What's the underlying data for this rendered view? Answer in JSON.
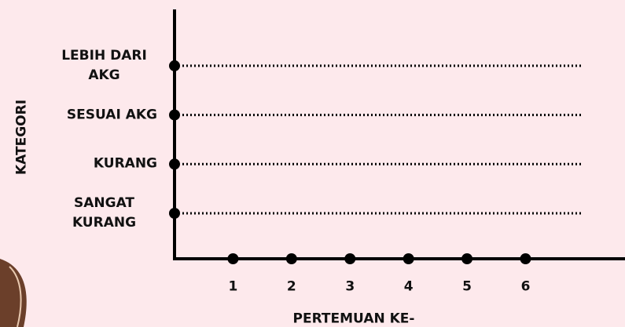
{
  "chart_data": {
    "type": "category-grid",
    "x_label": "PERTEMUAN KE-",
    "y_label": "KATEGORI",
    "xlim": [
      0,
      7.7
    ],
    "xticks": [
      1,
      2,
      3,
      4,
      5,
      6
    ],
    "y_categories": [
      "SANGAT KURANG",
      "KURANG",
      "SESUAI AKG",
      "LEBIH DARI AKG"
    ],
    "grid": true,
    "color": "#000000"
  }
}
